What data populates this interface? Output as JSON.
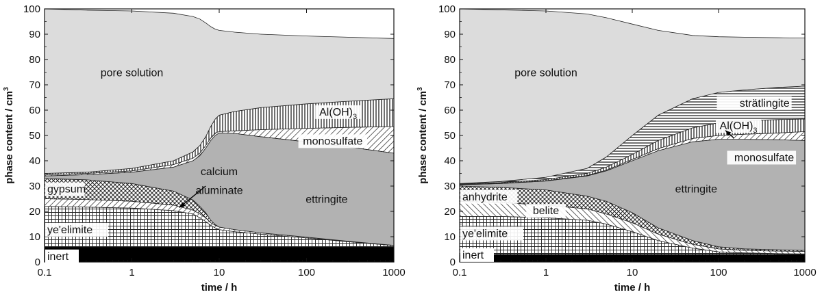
{
  "colors": {
    "pore_solution": "#dcdcdc",
    "ettringite": "#b2b2b2",
    "inert": "#000000",
    "hatch_stroke": "#222222",
    "frame": "#111111"
  },
  "chart_data": [
    {
      "type": "area",
      "stacked": true,
      "xscale": "log",
      "xlim": [
        0.1,
        1000
      ],
      "ylim": [
        0,
        100
      ],
      "xticks": [
        "0.1",
        "1",
        "10",
        "100",
        "1000"
      ],
      "yticks": [
        "0",
        "10",
        "20",
        "30",
        "40",
        "50",
        "60",
        "70",
        "80",
        "90",
        "100"
      ],
      "xlabel": "time / h",
      "ylabel": "phase content / cm",
      "ylabel_sup": "3",
      "x": [
        0.1,
        0.3,
        1,
        3,
        5,
        6,
        7,
        8,
        9,
        10,
        15,
        30,
        100,
        300,
        1000
      ],
      "series": [
        {
          "name": "inert",
          "pattern": "solid-black",
          "upper": [
            6,
            6,
            6,
            6,
            6,
            6,
            6,
            6,
            6,
            6,
            6,
            6,
            6,
            6,
            6
          ]
        },
        {
          "name": "ye'elimite",
          "pattern": "grid",
          "upper": [
            22,
            21.7,
            21.3,
            20.3,
            19,
            17.5,
            16,
            14.5,
            13.5,
            12.8,
            12,
            11,
            9.5,
            8,
            6.5
          ]
        },
        {
          "name": "calcium aluminate",
          "pattern": "diag-right",
          "upper": [
            25,
            24.7,
            24,
            22.5,
            20.5,
            19,
            17.5,
            15.5,
            14.5,
            13.8,
            12.8,
            11.5,
            9.8,
            8.2,
            6.6
          ]
        },
        {
          "name": "gypsum",
          "pattern": "crosshatch",
          "upper": [
            33,
            32.5,
            31,
            28,
            24.5,
            22,
            19.5,
            16.5,
            14.8,
            13.8,
            12.8,
            11.5,
            9.8,
            8.2,
            6.6
          ]
        },
        {
          "name": "ettringite",
          "pattern": "gray",
          "upper": [
            34,
            34.5,
            35.5,
            37.5,
            40,
            42,
            45,
            48,
            50,
            51,
            50.8,
            49.5,
            47.5,
            45.5,
            43
          ]
        },
        {
          "name": "monosulfate",
          "pattern": "diag-right",
          "upper": [
            34.5,
            35,
            36,
            38.5,
            41,
            43,
            46,
            49,
            51,
            51.5,
            51.8,
            52.3,
            52.8,
            53.2,
            53.5
          ]
        },
        {
          "name": "Al(OH)",
          "name_sub": "3",
          "pattern": "vertical",
          "upper": [
            35,
            35.5,
            37,
            40,
            43.5,
            46,
            49.5,
            53.5,
            56.5,
            58,
            59.5,
            61,
            62.5,
            63.5,
            64.5
          ]
        },
        {
          "name": "pore solution",
          "pattern": "light-gray",
          "upper": [
            100,
            99.5,
            99.2,
            98.3,
            97,
            96,
            94.5,
            93,
            92,
            91.5,
            90.8,
            90,
            89.3,
            88.8,
            88.3
          ]
        }
      ],
      "labels": [
        {
          "series": "pore solution",
          "text": "pore solution",
          "x": 1,
          "y": 75
        },
        {
          "series": "Al(OH)",
          "text": "Al(OH)",
          "sub": "3",
          "x": 230,
          "y": 59.5
        },
        {
          "series": "monosulfate",
          "text": "monosulfate",
          "x": 200,
          "y": 48
        },
        {
          "series": "ettringite",
          "text": "ettringite",
          "x": 170,
          "y": 25
        },
        {
          "series": "gypsum",
          "text": "gypsum",
          "x": 0.1,
          "y": 29
        },
        {
          "series": "ye'elimite",
          "text": "ye'elimite",
          "x": 0.1,
          "y": 13
        },
        {
          "series": "inert",
          "text": "inert",
          "x": 0.1,
          "y": 2.5
        },
        {
          "series": "calcium aluminate",
          "text": "calcium",
          "x": 10,
          "y": 36
        },
        {
          "series": "calcium aluminate",
          "text": "aluminate",
          "x": 10,
          "y": 28.5
        }
      ],
      "arrows": [
        {
          "from": [
            7,
            30
          ],
          "to": [
            3.5,
            21.5
          ]
        }
      ]
    },
    {
      "type": "area",
      "stacked": true,
      "xscale": "log",
      "xlim": [
        0.1,
        1000
      ],
      "ylim": [
        0,
        100
      ],
      "xticks": [
        "0.1",
        "1",
        "10",
        "100",
        "1000"
      ],
      "yticks": [
        "0",
        "10",
        "20",
        "30",
        "40",
        "50",
        "60",
        "70",
        "80",
        "90",
        "100"
      ],
      "xlabel": "time / h",
      "ylabel": "phase content / cm",
      "ylabel_sup": "3",
      "x": [
        0.1,
        0.3,
        1,
        3,
        5,
        10,
        20,
        50,
        100,
        200,
        500,
        1000
      ],
      "series": [
        {
          "name": "inert",
          "pattern": "solid-black",
          "upper": [
            3,
            3,
            3,
            3,
            3,
            3,
            3,
            3,
            3,
            3,
            3,
            3
          ]
        },
        {
          "name": "ye'elimite",
          "pattern": "grid",
          "upper": [
            18,
            18,
            17.5,
            16.5,
            15,
            12,
            8.5,
            5.5,
            4,
            3.6,
            3.3,
            3.2
          ]
        },
        {
          "name": "belite",
          "pattern": "diag-left",
          "upper": [
            24,
            23.5,
            22.5,
            21,
            19,
            15.5,
            11,
            7,
            5.2,
            4.6,
            4.3,
            4.2
          ]
        },
        {
          "name": "anhydrite",
          "pattern": "crosshatch",
          "upper": [
            30,
            29.5,
            28.5,
            26,
            24,
            19.5,
            13.5,
            8.5,
            6,
            5.2,
            4.8,
            4.6
          ]
        },
        {
          "name": "ettringite",
          "pattern": "gray",
          "upper": [
            30.5,
            31,
            32,
            34,
            36,
            40,
            44,
            47.5,
            48.5,
            48.5,
            48.3,
            48
          ]
        },
        {
          "name": "monosulfate",
          "pattern": "diag-right",
          "upper": [
            30.6,
            31.1,
            32.1,
            34.2,
            36.3,
            40.5,
            44.8,
            48.8,
            50,
            50.5,
            51,
            51.5
          ]
        },
        {
          "name": "Al(OH)",
          "name_sub": "3",
          "pattern": "vertical",
          "upper": [
            30.8,
            31.4,
            32.6,
            35,
            37.5,
            42.5,
            48,
            53,
            55,
            55.8,
            56.3,
            56.5
          ]
        },
        {
          "name": "strätlingite",
          "pattern": "horizontal",
          "upper": [
            31,
            31.8,
            33.5,
            37,
            41.5,
            50,
            58,
            64.5,
            67,
            68,
            69,
            69.5
          ]
        },
        {
          "name": "pore solution",
          "pattern": "light-gray",
          "upper": [
            100,
            99.6,
            99.2,
            98,
            96.5,
            94,
            91.5,
            89.5,
            89,
            88.8,
            88.6,
            88.5
          ]
        }
      ],
      "labels": [
        {
          "series": "pore solution",
          "text": "pore solution",
          "x": 1,
          "y": 75
        },
        {
          "series": "strätlingite",
          "text": "strätlingite",
          "x": 320,
          "y": 63
        },
        {
          "series": "Al(OH)",
          "text": "Al(OH)",
          "sub": "3",
          "x": 170,
          "y": 54
        },
        {
          "series": "monosulfate",
          "text": "monosulfate",
          "x": 360,
          "y": 41.5
        },
        {
          "series": "ettringite",
          "text": "ettringite",
          "x": 55,
          "y": 29
        },
        {
          "series": "anhydrite",
          "text": "anhydrite",
          "x": 0.1,
          "y": 26
        },
        {
          "series": "belite",
          "text": "belite",
          "x": 1,
          "y": 20.5
        },
        {
          "series": "ye'elimite",
          "text": "ye'elimite",
          "x": 0.1,
          "y": 11.5
        },
        {
          "series": "inert",
          "text": "inert",
          "x": 0.1,
          "y": 3
        }
      ],
      "arrows": [
        {
          "from": [
            150,
            49
          ],
          "to": [
            120,
            52
          ]
        }
      ]
    }
  ]
}
